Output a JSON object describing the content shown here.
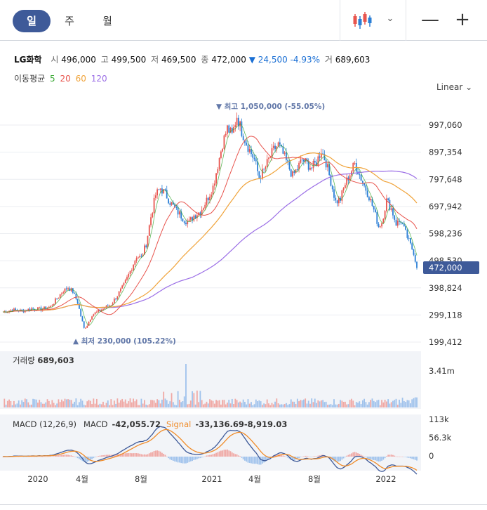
{
  "tabs": [
    {
      "label": "일",
      "active": true
    },
    {
      "label": "주",
      "active": false
    },
    {
      "label": "월",
      "active": false
    }
  ],
  "toolbar": {
    "chart_type_icon": "candlestick-icon",
    "dropdown_icon": "chevron-down-icon",
    "zoom_out_label": "—",
    "zoom_in_label": "+"
  },
  "quote": {
    "name": "LG화학",
    "open_label": "시",
    "open": "496,000",
    "high_label": "고",
    "high": "499,500",
    "low_label": "저",
    "low": "469,500",
    "close_label": "종",
    "close": "472,000",
    "change": "▼ 24,500",
    "change_pct": "-4.93%",
    "volume_label": "거",
    "volume": "689,603"
  },
  "ma_legend": {
    "label": "이동평균",
    "periods": [
      "5",
      "20",
      "60",
      "120"
    ],
    "colors": [
      "#3aa935",
      "#e8554e",
      "#f0a33a",
      "#9b6ee6"
    ]
  },
  "scale": {
    "label": "Linear",
    "icon": "chevron-down-icon"
  },
  "colors": {
    "up": "#e8554e",
    "down": "#2b7fd6",
    "accent": "#3e5a99",
    "macd": "#3e5a99",
    "signal": "#f08c2a"
  },
  "chart_data": {
    "type": "candlestick",
    "price_axis": {
      "ticks": [
        997060,
        897354,
        797648,
        697942,
        598236,
        498530,
        398824,
        299118,
        199412
      ],
      "tick_labels": [
        "997,060",
        "897,354",
        "797,648",
        "697,942",
        "598,236",
        "498,530",
        "398,824",
        "299,118",
        "199,412"
      ],
      "current": "472,000"
    },
    "x_axis": {
      "labels": [
        "2020",
        "4월",
        "8월",
        "2021",
        "4월",
        "8월",
        "2022"
      ]
    },
    "annotations": {
      "high_text": "▼ 최고 1,050,000 (-55.05%)",
      "low_text": "▲ 최저 230,000 (105.22%)"
    },
    "price_path": [
      [
        0,
        310000
      ],
      [
        6,
        318000
      ],
      [
        12,
        314000
      ],
      [
        18,
        322000
      ],
      [
        24,
        320000
      ],
      [
        30,
        330000
      ],
      [
        34,
        360000
      ],
      [
        38,
        388000
      ],
      [
        41,
        400000
      ],
      [
        44,
        385000
      ],
      [
        47,
        345000
      ],
      [
        49,
        295000
      ],
      [
        51,
        250000
      ],
      [
        53,
        262000
      ],
      [
        56,
        300000
      ],
      [
        60,
        312000
      ],
      [
        64,
        325000
      ],
      [
        68,
        338000
      ],
      [
        72,
        372000
      ],
      [
        76,
        408000
      ],
      [
        80,
        460000
      ],
      [
        84,
        515000
      ],
      [
        87,
        510000
      ],
      [
        90,
        560000
      ],
      [
        93,
        660000
      ],
      [
        96,
        740000
      ],
      [
        99,
        765000
      ],
      [
        102,
        745000
      ],
      [
        105,
        715000
      ],
      [
        108,
        690000
      ],
      [
        111,
        670000
      ],
      [
        114,
        650000
      ],
      [
        117,
        640000
      ],
      [
        120,
        665000
      ],
      [
        124,
        680000
      ],
      [
        128,
        720000
      ],
      [
        132,
        770000
      ],
      [
        135,
        850000
      ],
      [
        138,
        930000
      ],
      [
        141,
        985000
      ],
      [
        144,
        960000
      ],
      [
        147,
        1030000
      ],
      [
        150,
        975000
      ],
      [
        152,
        945000
      ],
      [
        155,
        905000
      ],
      [
        158,
        870000
      ],
      [
        161,
        805000
      ],
      [
        164,
        830000
      ],
      [
        167,
        870000
      ],
      [
        170,
        905000
      ],
      [
        173,
        925000
      ],
      [
        176,
        890000
      ],
      [
        179,
        850000
      ],
      [
        182,
        810000
      ],
      [
        185,
        838000
      ],
      [
        188,
        870000
      ],
      [
        191,
        855000
      ],
      [
        194,
        840000
      ],
      [
        197,
        860000
      ],
      [
        200,
        905000
      ],
      [
        203,
        860000
      ],
      [
        206,
        790000
      ],
      [
        209,
        715000
      ],
      [
        212,
        725000
      ],
      [
        215,
        780000
      ],
      [
        218,
        818000
      ],
      [
        221,
        855000
      ],
      [
        224,
        815000
      ],
      [
        227,
        775000
      ],
      [
        230,
        735000
      ],
      [
        233,
        685000
      ],
      [
        236,
        625000
      ],
      [
        238,
        640000
      ],
      [
        241,
        720000
      ],
      [
        244,
        690000
      ],
      [
        247,
        635000
      ],
      [
        250,
        645000
      ],
      [
        253,
        600000
      ],
      [
        256,
        555000
      ],
      [
        258,
        530000
      ],
      [
        260,
        472000
      ]
    ],
    "moving_averages": {
      "ma5": "follows price closely",
      "series_names": [
        "5",
        "20",
        "60",
        "120"
      ]
    },
    "volume": {
      "label": "거래량",
      "value": "689,603",
      "axis_max_label": "3.41m"
    },
    "macd": {
      "label": "MACD (12,26,9)",
      "macd_label": "MACD",
      "macd_value": "-42,055.72",
      "signal_label": "Signal",
      "signal_value": "-33,136.69",
      "hist_value": "-8,919.03",
      "axis_labels": [
        "113k",
        "56.3k",
        "0"
      ]
    }
  }
}
